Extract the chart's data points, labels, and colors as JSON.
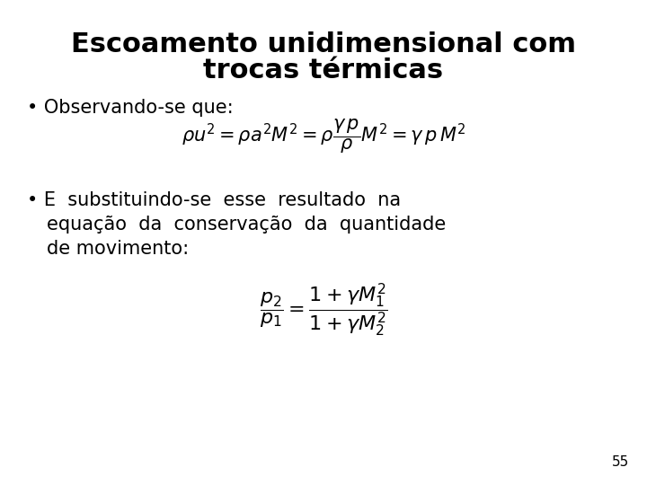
{
  "background_color": "#ffffff",
  "title_line1": "Escoamento unidimensional com",
  "title_line2": "trocas térmicas",
  "title_fontsize": 22,
  "bullet1_text": "Observando-se que:",
  "bullet1_fontsize": 15,
  "eq1_latex": "$\\rho u^2 = \\rho a^2 M^2 = \\rho \\dfrac{\\gamma \\, p}{\\rho} M^2 = \\gamma \\, p \\, M^2$",
  "eq1_fontsize": 15,
  "bullet2_line1": "E  substituindo-se  esse  resultado  na",
  "bullet2_line2": "equação  da  conservação  da  quantidade",
  "bullet2_line3": "de movimento:",
  "bullet2_fontsize": 15,
  "eq2_latex": "$\\dfrac{p_2}{p_1} = \\dfrac{1 + \\gamma M_1^2}{1 + \\gamma M_2^2}$",
  "eq2_fontsize": 16,
  "page_number": "55",
  "page_fontsize": 11,
  "text_color": "#000000"
}
